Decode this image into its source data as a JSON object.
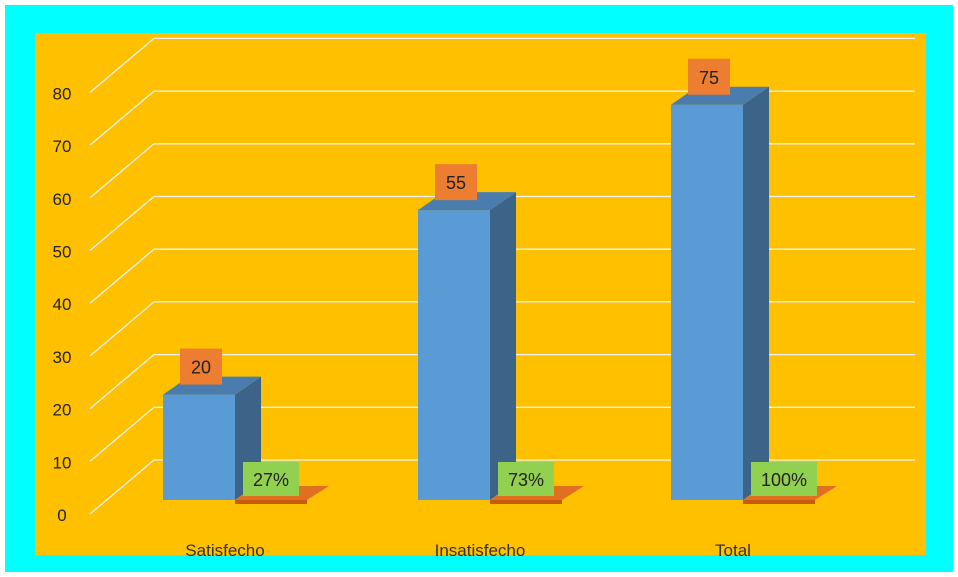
{
  "chart_data": {
    "type": "bar",
    "style": "3d-column",
    "categories": [
      "Satisfecho",
      "Insatisfecho",
      "Total"
    ],
    "series": [
      {
        "values": [
          20,
          55,
          75
        ],
        "color": "#5b9bd5",
        "side_color": "#3c6489",
        "top_color": "#4a7cad",
        "label_bg": "#ed7d31"
      },
      {
        "values": [
          0,
          0,
          0
        ],
        "color": "#ed7d31",
        "side_color": "#c55a11",
        "top_color": "#e07020"
      }
    ],
    "percent_labels": [
      "27%",
      "73%",
      "100%"
    ],
    "percent_label_bg": "#92d050",
    "yticks": [
      0,
      10,
      20,
      30,
      40,
      50,
      60,
      70,
      80
    ],
    "ylim": [
      0,
      85
    ],
    "grid": true,
    "gridline_color": "#f2f2f2",
    "title": "",
    "xlabel": "",
    "ylabel": "",
    "colors": {
      "frame": "#00ffff",
      "plot_background": "#ffc000"
    }
  }
}
